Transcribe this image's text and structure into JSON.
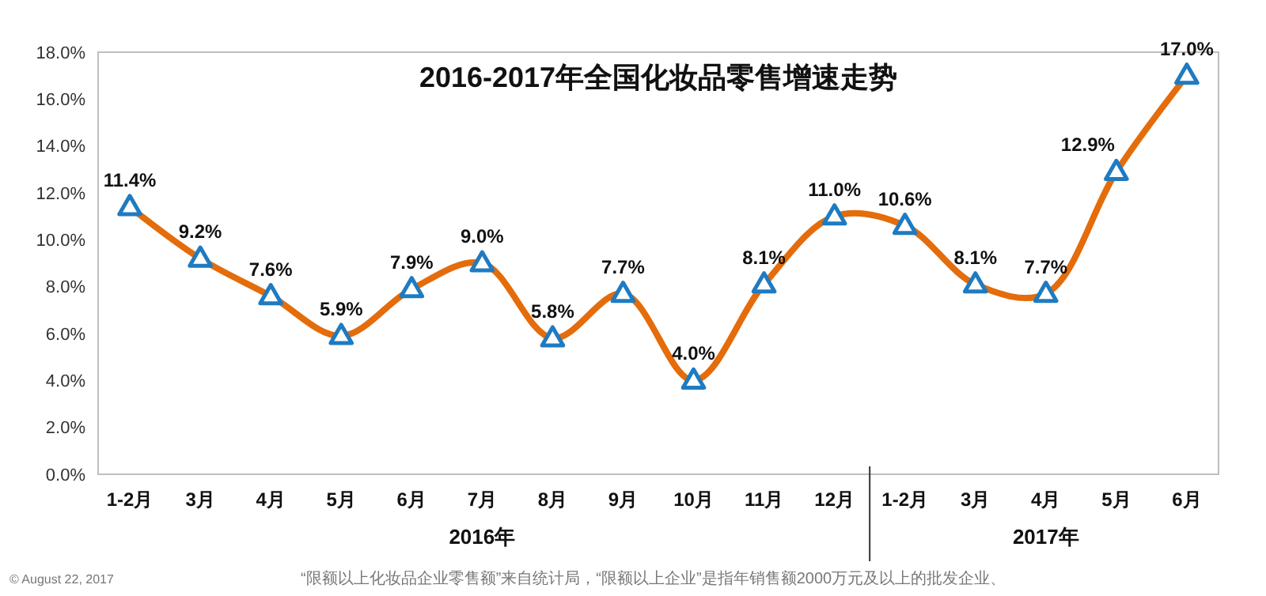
{
  "chart_data": {
    "type": "line",
    "title": "2016-2017年全国化妆品零售增速走势",
    "categories": [
      "1-2月",
      "3月",
      "4月",
      "5月",
      "6月",
      "7月",
      "8月",
      "9月",
      "10月",
      "11月",
      "12月",
      "1-2月",
      "3月",
      "4月",
      "5月",
      "6月"
    ],
    "series": [
      {
        "color": "#e46c0a",
        "values": [
          11.4,
          9.2,
          7.6,
          5.9,
          7.9,
          9.0,
          5.8,
          7.7,
          4.0,
          8.1,
          11.0,
          10.6,
          8.1,
          7.7,
          12.9,
          17.0
        ],
        "value_labels": [
          "11.4%",
          "9.2%",
          "7.6%",
          "5.9%",
          "7.9%",
          "9.0%",
          "5.8%",
          "7.7%",
          "4.0%",
          "8.1%",
          "11.0%",
          "10.6%",
          "8.1%",
          "7.7%",
          "12.9%",
          "17.0%"
        ]
      }
    ],
    "ylim": [
      0,
      18
    ],
    "yticks": [
      {
        "value": 0,
        "label": "0.0%"
      },
      {
        "value": 2,
        "label": "2.0%"
      },
      {
        "value": 4,
        "label": "4.0%"
      },
      {
        "value": 6,
        "label": "6.0%"
      },
      {
        "value": 8,
        "label": "8.0%"
      },
      {
        "value": 10,
        "label": "10.0%"
      },
      {
        "value": 12,
        "label": "12.0%"
      },
      {
        "value": 14,
        "label": "14.0%"
      },
      {
        "value": 16,
        "label": "16.0%"
      },
      {
        "value": 18,
        "label": "18.0%"
      }
    ],
    "marker": "triangle",
    "line_style": "solid",
    "annotations": [
      "2016年",
      "2017年",
      "© August 22, 2017",
      "“限额以上化妆品企业零售额”来自统计局，“限额以上企业”是指年销售额2000万元及以上的批发企业、"
    ]
  }
}
